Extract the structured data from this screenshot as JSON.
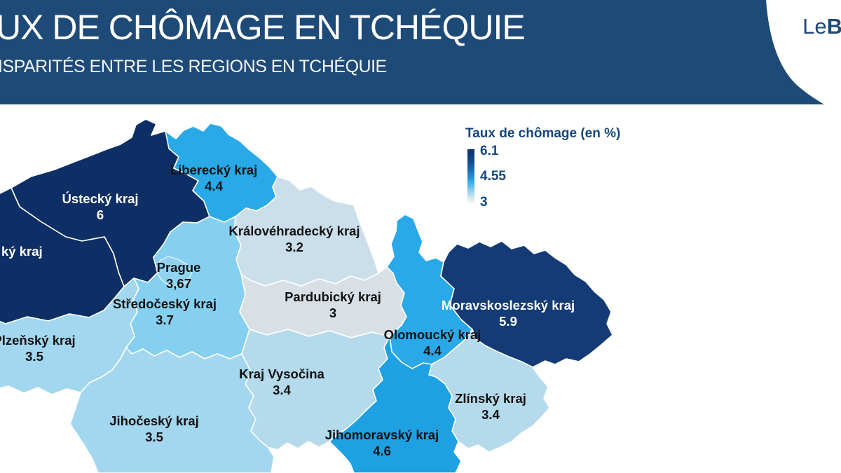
{
  "header": {
    "title": "UX DE CHÔMAGE EN TCHÉQUIE",
    "subtitle": "ISPARITÉS ENTRE LES REGIONS EN TCHÉQUIE",
    "logo_regular": "Le",
    "logo_bold": "B",
    "bg_color": "#1e4a78"
  },
  "legend": {
    "title": "Taux de chômage (en %)",
    "max_label": "6.1",
    "mid_label": "4.55",
    "min_label": "3"
  },
  "chart_data": {
    "type": "choropleth_map",
    "title": "Taux de chômage (en %)",
    "legend_range": [
      3,
      6.1
    ],
    "legend_mid": 4.55,
    "regions": [
      {
        "id": "ustecky",
        "name": "Ústecký kraj",
        "value_display": "6",
        "value": 6.0,
        "color": "#0e2f66",
        "label_color": "#ffffff"
      },
      {
        "id": "karlovarsky",
        "name": "ký kraj",
        "value_display": "",
        "value": null,
        "color": "#0e2f66",
        "label_color": "#ffffff"
      },
      {
        "id": "liberecky",
        "name": "Liberecký kraj",
        "value_display": "4.4",
        "value": 4.4,
        "color": "#29a9e8",
        "label_color": "#111111"
      },
      {
        "id": "kralovehradecky",
        "name": "Královéhradecký kraj",
        "value_display": "3.2",
        "value": 3.2,
        "color": "#cbdfeb",
        "label_color": "#111111"
      },
      {
        "id": "pardubicky",
        "name": "Pardubický kraj",
        "value_display": "3",
        "value": 3.0,
        "color": "#d9e0e5",
        "label_color": "#111111"
      },
      {
        "id": "stredocesky",
        "name": "Středočeský kraj",
        "value_display": "3.7",
        "value": 3.7,
        "color": "#85d0f0",
        "label_color": "#111111"
      },
      {
        "id": "prague",
        "name": "Prague",
        "value_display": "3,67",
        "value": 3.67,
        "color": "#90d3f0",
        "label_color": "#111111"
      },
      {
        "id": "plzensky",
        "name": "Plzeňský kraj",
        "value_display": "3.5",
        "value": 3.5,
        "color": "#a3d7ef",
        "label_color": "#111111"
      },
      {
        "id": "jihocesky",
        "name": "Jihočeský kraj",
        "value_display": "3.5",
        "value": 3.5,
        "color": "#a3d7ef",
        "label_color": "#111111"
      },
      {
        "id": "vysocina",
        "name": "Kraj Vysočina",
        "value_display": "3.4",
        "value": 3.4,
        "color": "#b4daec",
        "label_color": "#111111"
      },
      {
        "id": "olomoucky",
        "name": "Olomoucký kraj",
        "value_display": "4.4",
        "value": 4.4,
        "color": "#29a9e8",
        "label_color": "#111111"
      },
      {
        "id": "moravskoslezsky",
        "name": "Moravskoslezský kraj",
        "value_display": "5.9",
        "value": 5.9,
        "color": "#143b75",
        "label_color": "#ffffff"
      },
      {
        "id": "zlinsky",
        "name": "Zlínský kraj",
        "value_display": "3.4",
        "value": 3.4,
        "color": "#b4daec",
        "label_color": "#111111"
      },
      {
        "id": "jihomoravsky",
        "name": "Jihomoravský kraj",
        "value_display": "4.6",
        "value": 4.6,
        "color": "#1da1e2",
        "label_color": "#111111"
      }
    ]
  }
}
